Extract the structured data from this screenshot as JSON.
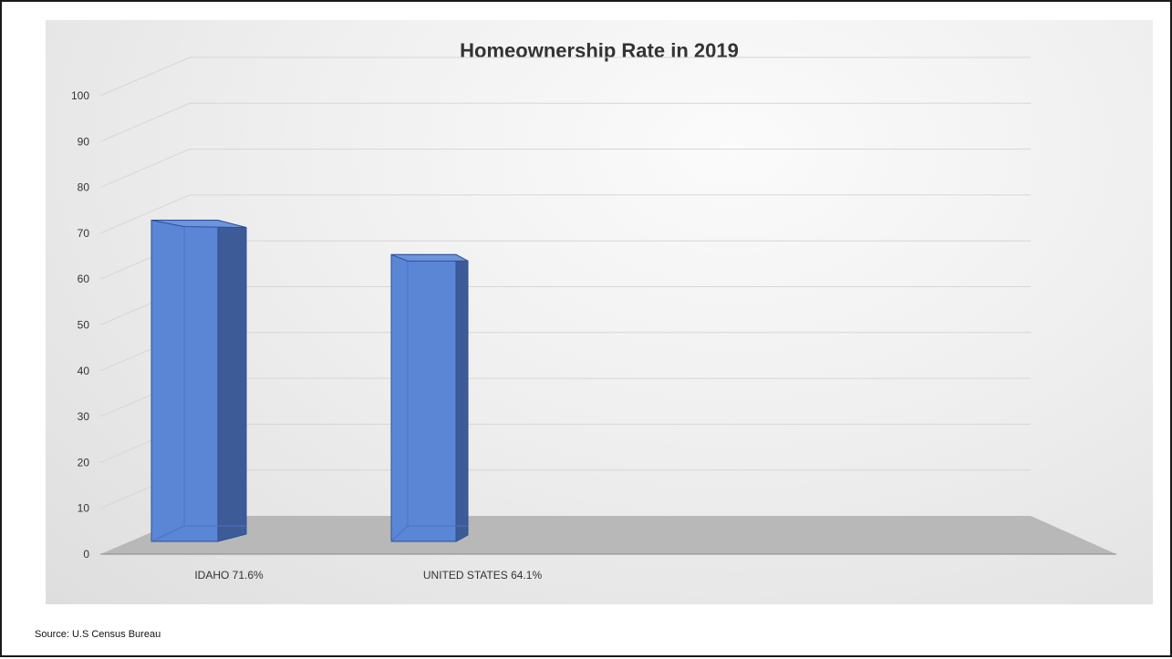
{
  "source_note": "Source: U.S Census Bureau",
  "chart_data": {
    "type": "bar",
    "title": "Homeownership Rate in 2019",
    "categories": [
      "IDAHO 71.6%",
      "UNITED STATES 64.1%"
    ],
    "values": [
      71.6,
      64.1
    ],
    "ylim": [
      0,
      100
    ],
    "yticks": [
      0,
      10,
      20,
      30,
      40,
      50,
      60,
      70,
      80,
      90,
      100
    ],
    "xlabel": "",
    "ylabel": "",
    "grid": true,
    "legend": "none",
    "three_d": true,
    "colors": {
      "bar_front": "#5b86d6",
      "bar_side": "#3d5b96",
      "bar_edge": "#2b4f9a",
      "floor": "#b8b8b8",
      "grid": "#d6d6d6"
    }
  }
}
